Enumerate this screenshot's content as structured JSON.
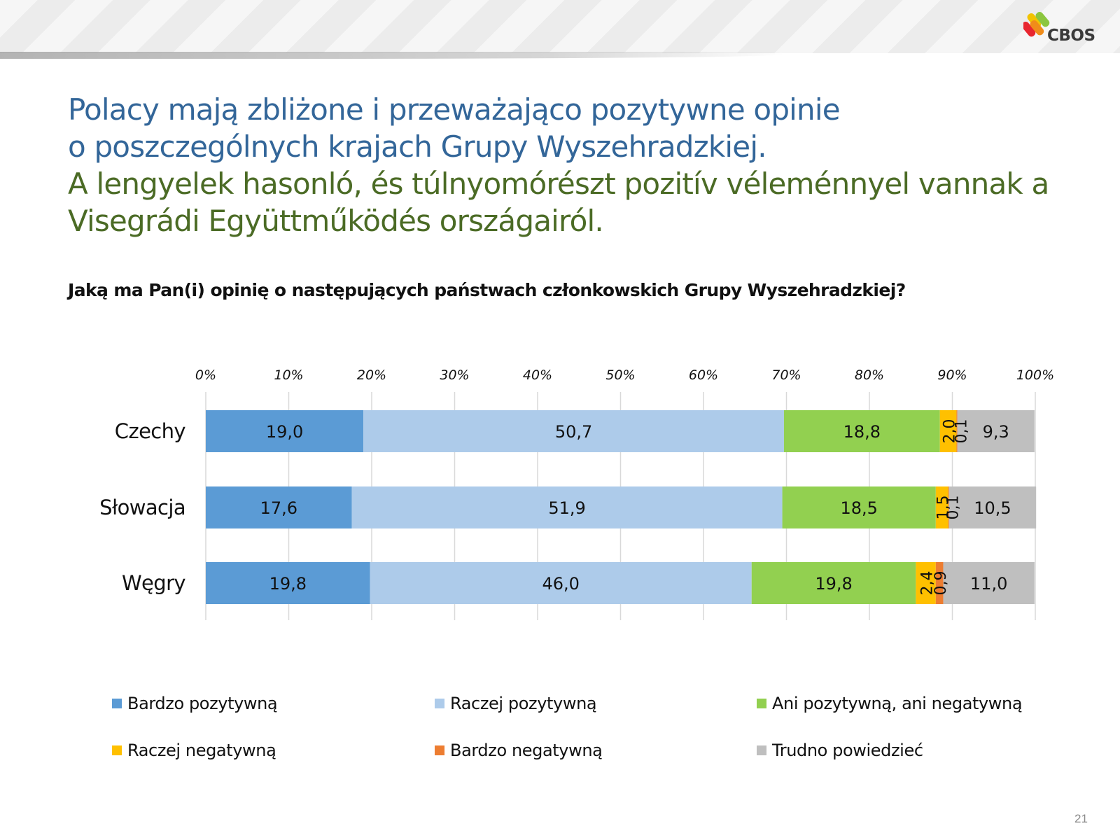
{
  "title_pl": [
    "Polacy mają zbliżone i przeważająco pozytywne opinie",
    "o poszczególnych krajach Grupy Wyszehradzkiej."
  ],
  "title_hu": [
    "A lengyelek hasonló, és túlnyomórészt pozitív véleménnyel vannak a",
    "Visegrádi Együttműködés országairól."
  ],
  "question": "Jaką ma Pan(i) opinię o następujących państwach członkowskich Grupy Wyszehradzkiej?",
  "logo_text": "CBOS",
  "page_number": "21",
  "colors": {
    "title_pl": "#336699",
    "title_hu": "#4b6b25"
  },
  "chart_data": {
    "type": "bar",
    "orientation": "horizontal",
    "stacked": "percent",
    "categories": [
      "Czechy",
      "Słowacja",
      "Węgry"
    ],
    "series": [
      {
        "name": "Bardzo pozytywną",
        "color": "#5b9bd5",
        "values": [
          19.0,
          17.6,
          19.8
        ],
        "labels": [
          "19,0",
          "17,6",
          "19,8"
        ]
      },
      {
        "name": "Raczej pozytywną",
        "color": "#adcbea",
        "values": [
          50.7,
          51.9,
          46.0
        ],
        "labels": [
          "50,7",
          "51,9",
          "46,0"
        ]
      },
      {
        "name": "Ani pozytywną, ani negatywną",
        "color": "#92d050",
        "values": [
          18.8,
          18.5,
          19.8
        ],
        "labels": [
          "18,8",
          "18,5",
          "19,8"
        ]
      },
      {
        "name": "Raczej negatywną",
        "color": "#ffc000",
        "values": [
          2.0,
          1.5,
          2.4
        ],
        "labels": [
          "2,0",
          "1,5",
          "2,4"
        ]
      },
      {
        "name": "Bardzo negatywną",
        "color": "#ed7d31",
        "values": [
          0.1,
          0.1,
          0.9
        ],
        "labels": [
          "0,1",
          "0,1",
          "0,9"
        ]
      },
      {
        "name": "Trudno powiedzieć",
        "color": "#bfbfbf",
        "values": [
          9.3,
          10.5,
          11.0
        ],
        "labels": [
          "9,3",
          "10,5",
          "11,0"
        ]
      }
    ],
    "xlim": [
      0,
      100
    ],
    "xticks": [
      "0%",
      "10%",
      "20%",
      "30%",
      "40%",
      "50%",
      "60%",
      "70%",
      "80%",
      "90%",
      "100%"
    ],
    "axis_position": "top",
    "grid": true,
    "legend_position": "bottom"
  }
}
